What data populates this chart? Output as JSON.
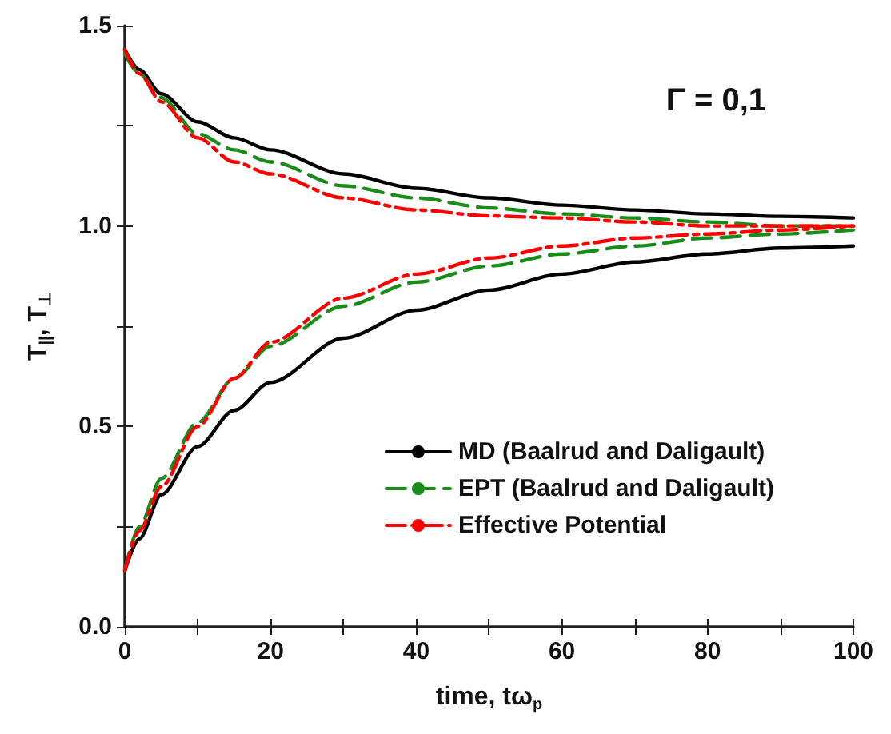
{
  "chart_data": {
    "type": "line",
    "xlabel": "time, tω$_{p}$",
    "ylabel": "T$_{||}$, T$_{⊥}$",
    "annotations": [
      "Γ = 0,1"
    ],
    "xlim": [
      0,
      100
    ],
    "xticks": [
      0,
      {
        "value": 10,
        "label": null
      },
      20,
      {
        "value": 30,
        "label": null
      },
      40,
      {
        "value": 50,
        "label": null
      },
      60,
      {
        "value": 70,
        "label": null
      },
      80,
      {
        "value": 90,
        "label": null
      },
      100
    ],
    "ylim": [
      0,
      1.5
    ],
    "yticks": [
      {
        "value": 0,
        "label": "0.0"
      },
      {
        "value": 0.25,
        "label": null
      },
      {
        "value": 0.5,
        "label": "0.5"
      },
      {
        "value": 0.75,
        "label": null
      },
      {
        "value": 1,
        "label": "1.0"
      },
      {
        "value": 1.25,
        "label": null
      },
      {
        "value": 1.5,
        "label": "1.5"
      }
    ],
    "grid": false,
    "legend": "bottom right",
    "marker": "none",
    "x": [
      0,
      2,
      5,
      10,
      15,
      20,
      30,
      40,
      50,
      60,
      70,
      80,
      90,
      100
    ],
    "series": [
      {
        "name": "MD (Baalrud and Daligault)",
        "color": "#000000",
        "line_style": "solid",
        "values": [
          1.44,
          1.39,
          1.33,
          1.26,
          1.22,
          1.19,
          1.13,
          1.094,
          1.07,
          1.052,
          1.04,
          1.03,
          1.024,
          1.02
        ]
      },
      {
        "name": "EPT (Baalrud and Daligault)",
        "color": "#1a8c1a",
        "line_style": "dashed",
        "values": [
          1.43,
          1.38,
          1.32,
          1.23,
          1.19,
          1.16,
          1.1,
          1.07,
          1.045,
          1.03,
          1.02,
          1.01,
          1.0,
          1.0
        ]
      },
      {
        "name": "Effective Potential",
        "color": "#ff0000",
        "line_style": "dashdot",
        "values": [
          1.44,
          1.38,
          1.31,
          1.22,
          1.16,
          1.13,
          1.07,
          1.04,
          1.025,
          1.02,
          1.01,
          1.0,
          1.0,
          1.0
        ]
      },
      {
        "color": "#000000",
        "line_style": "solid",
        "values": [
          0.14,
          0.22,
          0.33,
          0.45,
          0.54,
          0.61,
          0.72,
          0.79,
          0.84,
          0.88,
          0.91,
          0.93,
          0.945,
          0.95
        ]
      },
      {
        "color": "#1a8c1a",
        "line_style": "dashed",
        "values": [
          0.14,
          0.25,
          0.37,
          0.51,
          0.62,
          0.7,
          0.8,
          0.86,
          0.9,
          0.93,
          0.95,
          0.97,
          0.98,
          0.99
        ]
      },
      {
        "color": "#ff0000",
        "line_style": "dashdot",
        "values": [
          0.14,
          0.24,
          0.35,
          0.5,
          0.62,
          0.71,
          0.82,
          0.88,
          0.92,
          0.95,
          0.97,
          0.98,
          0.99,
          1.0
        ]
      }
    ]
  }
}
